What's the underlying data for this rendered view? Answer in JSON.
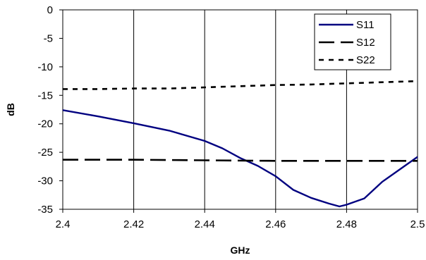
{
  "chart_data": {
    "type": "line",
    "xlabel": "GHz",
    "ylabel": "dB",
    "xlim": [
      2.4,
      2.5
    ],
    "ylim": [
      -35,
      0
    ],
    "x_ticks": [
      "2.4",
      "2.42",
      "2.44",
      "2.46",
      "2.48",
      "2.5"
    ],
    "y_ticks": [
      "0",
      "-5",
      "-10",
      "-15",
      "-20",
      "-25",
      "-30",
      "-35"
    ],
    "grid": "vertical",
    "legend_position": "top-right",
    "series": [
      {
        "name": "S11",
        "color": "#000080",
        "style": "solid",
        "points": [
          [
            2.4,
            -17.6
          ],
          [
            2.41,
            -18.7
          ],
          [
            2.42,
            -19.9
          ],
          [
            2.43,
            -21.2
          ],
          [
            2.44,
            -23.0
          ],
          [
            2.445,
            -24.3
          ],
          [
            2.45,
            -26.0
          ],
          [
            2.455,
            -27.4
          ],
          [
            2.46,
            -29.2
          ],
          [
            2.465,
            -31.6
          ],
          [
            2.47,
            -33.0
          ],
          [
            2.475,
            -34.0
          ],
          [
            2.478,
            -34.5
          ],
          [
            2.48,
            -34.2
          ],
          [
            2.485,
            -33.1
          ],
          [
            2.49,
            -30.2
          ],
          [
            2.495,
            -28.0
          ],
          [
            2.5,
            -25.8
          ]
        ]
      },
      {
        "name": "S12",
        "color": "#000000",
        "style": "long-dash",
        "points": [
          [
            2.4,
            -26.3
          ],
          [
            2.42,
            -26.3
          ],
          [
            2.44,
            -26.4
          ],
          [
            2.46,
            -26.5
          ],
          [
            2.48,
            -26.5
          ],
          [
            2.5,
            -26.5
          ]
        ]
      },
      {
        "name": "S22",
        "color": "#000000",
        "style": "short-dash",
        "points": [
          [
            2.4,
            -13.9
          ],
          [
            2.41,
            -13.9
          ],
          [
            2.42,
            -13.8
          ],
          [
            2.43,
            -13.8
          ],
          [
            2.44,
            -13.6
          ],
          [
            2.45,
            -13.4
          ],
          [
            2.46,
            -13.2
          ],
          [
            2.47,
            -13.1
          ],
          [
            2.48,
            -12.9
          ],
          [
            2.49,
            -12.7
          ],
          [
            2.5,
            -12.5
          ]
        ]
      }
    ]
  }
}
